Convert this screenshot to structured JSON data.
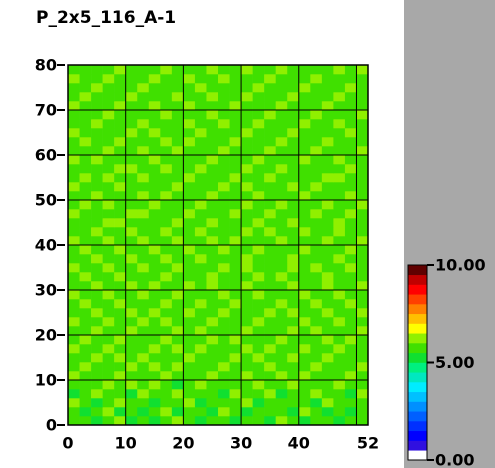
{
  "chart_data": {
    "type": "heatmap",
    "title": "P_2x5_116_A-1",
    "xlim": [
      0,
      52
    ],
    "ylim": [
      0,
      80
    ],
    "xticks": [
      0,
      10,
      20,
      30,
      40,
      52
    ],
    "yticks": [
      0,
      10,
      20,
      30,
      40,
      50,
      60,
      70,
      80
    ],
    "xgrid": [
      10,
      20,
      30,
      40,
      50
    ],
    "ygrid": [
      10,
      20,
      30,
      40,
      50,
      60,
      70
    ],
    "clim": [
      0,
      10
    ],
    "colorbar_ticks": [
      {
        "value": 0,
        "label": "0.00"
      },
      {
        "value": 5,
        "label": "5.00"
      },
      {
        "value": 10,
        "label": "10.00"
      }
    ],
    "colormap": [
      "#ffffff",
      "#3010e0",
      "#0000ff",
      "#0030ff",
      "#0060ff",
      "#0090ff",
      "#00c0ff",
      "#00ecff",
      "#00e8c0",
      "#00f080",
      "#10e030",
      "#40e000",
      "#90f000",
      "#ffff00",
      "#ffc000",
      "#ff8000",
      "#ff4000",
      "#ff0000",
      "#c00000",
      "#600000"
    ],
    "values": [
      [
        5.6,
        5.8,
        5.3,
        5.9,
        6.1,
        5.4,
        5.7,
        5.2,
        5.8,
        6.0,
        5.5,
        5.3,
        5.9,
        5.6,
        5.1,
        5.8,
        5.7,
        5.4,
        6.1,
        5.8,
        5.3,
        5.6,
        5.9,
        5.2,
        5.7,
        5.5
      ],
      [
        5.8,
        5.2,
        5.7,
        6.2,
        5.4,
        5.9,
        5.1,
        5.6,
        6.0,
        5.3,
        5.8,
        5.7,
        5.4,
        6.1,
        5.6,
        5.3,
        5.9,
        5.5,
        5.7,
        5.2,
        6.0,
        5.8,
        5.4,
        5.6,
        5.3,
        5.9
      ],
      [
        6.1,
        5.7,
        5.4,
        5.8,
        6.3,
        5.6,
        5.9,
        5.3,
        5.7,
        5.8,
        6.1,
        5.4,
        5.6,
        5.9,
        5.8,
        6.2,
        5.4,
        5.7,
        5.9,
        5.6,
        5.8,
        5.3,
        6.1,
        5.7,
        5.9,
        5.6
      ],
      [
        5.4,
        5.9,
        6.0,
        5.6,
        5.8,
        5.3,
        6.2,
        5.7,
        5.5,
        6.1,
        5.6,
        5.9,
        5.8,
        5.3,
        6.0,
        5.7,
        5.6,
        6.2,
        5.4,
        5.9,
        5.7,
        6.0,
        5.6,
        5.8,
        5.4,
        6.1
      ],
      [
        5.9,
        5.6,
        5.8,
        6.3,
        5.7,
        6.0,
        5.6,
        6.1,
        5.9,
        5.4,
        5.8,
        6.2,
        5.7,
        5.9,
        5.6,
        5.8,
        6.1,
        5.7,
        5.9,
        6.3,
        5.6,
        5.8,
        5.7,
        6.0,
        5.9,
        5.7
      ],
      [
        6.2,
        5.8,
        5.6,
        5.9,
        6.1,
        5.7,
        5.9,
        5.8,
        6.3,
        5.7,
        5.9,
        5.6,
        6.1,
        5.8,
        5.9,
        6.2,
        5.7,
        5.8,
        6.0,
        5.7,
        6.1,
        5.9,
        5.8,
        5.6,
        6.2,
        5.8
      ],
      [
        5.7,
        6.1,
        5.9,
        5.6,
        5.8,
        6.2,
        5.7,
        6.0,
        5.8,
        6.1,
        5.7,
        5.9,
        5.8,
        6.2,
        5.7,
        5.9,
        5.8,
        6.1,
        5.6,
        5.9,
        5.8,
        6.2,
        5.9,
        5.7,
        5.8,
        6.0
      ],
      [
        5.9,
        5.7,
        6.2,
        5.8,
        6.0,
        5.9,
        6.1,
        5.7,
        5.9,
        5.8,
        6.3,
        5.8,
        5.9,
        5.7,
        6.1,
        5.8,
        6.0,
        5.7,
        5.9,
        6.1,
        5.7,
        5.8,
        6.1,
        5.9,
        5.7,
        5.9
      ],
      [
        6.0,
        5.9,
        5.7,
        6.1,
        5.8,
        5.7,
        5.9,
        6.2,
        5.7,
        6.0,
        5.8,
        6.1,
        5.7,
        5.9,
        5.8,
        6.0,
        5.9,
        6.2,
        5.8,
        5.7,
        6.0,
        5.9,
        5.7,
        6.2,
        5.9,
        5.8
      ],
      [
        5.8,
        6.2,
        5.9,
        5.7,
        6.1,
        5.9,
        5.8,
        5.7,
        6.1,
        5.9,
        5.7,
        5.8,
        6.2,
        5.9,
        6.0,
        5.7,
        5.8,
        5.9,
        6.1,
        5.8,
        5.9,
        5.7,
        6.0,
        5.8,
        6.1,
        5.7
      ],
      [
        5.9,
        5.7,
        6.1,
        5.9,
        5.7,
        6.2,
        5.9,
        5.8,
        5.7,
        6.1,
        5.9,
        6.0,
        5.8,
        5.7,
        5.9,
        6.1,
        5.8,
        5.7,
        5.9,
        6.2,
        5.8,
        6.0,
        5.9,
        5.7,
        5.8,
        6.2
      ],
      [
        6.1,
        5.9,
        5.8,
        6.0,
        5.9,
        5.7,
        6.1,
        5.9,
        6.0,
        5.8,
        5.7,
        5.9,
        6.1,
        5.8,
        5.7,
        5.9,
        6.2,
        5.8,
        5.7,
        5.9,
        6.1,
        5.7,
        5.8,
        6.0,
        5.9,
        5.8
      ],
      [
        5.7,
        5.8,
        6.2,
        5.9,
        5.8,
        6.0,
        5.7,
        6.1,
        5.9,
        5.7,
        6.0,
        5.8,
        5.9,
        6.1,
        5.8,
        5.7,
        5.9,
        6.0,
        5.8,
        6.1,
        5.9,
        5.8,
        6.2,
        5.7,
        5.9,
        6.0
      ],
      [
        5.9,
        6.1,
        5.7,
        5.8,
        6.1,
        5.9,
        5.8,
        5.7,
        6.2,
        5.9,
        5.8,
        6.1,
        5.7,
        5.9,
        6.0,
        5.8,
        5.7,
        5.9,
        6.2,
        5.8,
        5.7,
        6.0,
        5.9,
        5.8,
        6.1,
        5.7
      ],
      [
        6.0,
        5.8,
        5.9,
        6.2,
        5.7,
        5.8,
        6.1,
        5.9,
        5.8,
        6.0,
        5.7,
        5.9,
        5.8,
        6.1,
        5.9,
        5.7,
        6.1,
        5.8,
        5.9,
        5.7,
        6.0,
        5.8,
        5.7,
        6.1,
        5.8,
        5.9
      ],
      [
        5.8,
        5.9,
        6.1,
        5.7,
        5.9,
        6.1,
        5.8,
        6.0,
        5.7,
        5.9,
        6.1,
        5.8,
        6.0,
        5.7,
        5.8,
        6.2,
        5.9,
        5.7,
        5.8,
        6.1,
        5.9,
        5.7,
        6.0,
        5.9,
        5.7,
        6.1
      ],
      [
        5.9,
        6.0,
        5.7,
        5.9,
        6.2,
        5.8,
        5.7,
        5.9,
        6.1,
        5.8,
        5.9,
        5.7,
        6.1,
        5.9,
        5.8,
        5.7,
        6.0,
        5.9,
        6.1,
        5.8,
        5.7,
        5.9,
        6.2,
        5.8,
        5.9,
        5.8
      ],
      [
        6.1,
        5.7,
        5.9,
        6.0,
        5.8,
        5.9,
        6.1,
        5.7,
        5.9,
        6.2,
        5.8,
        5.9,
        5.7,
        6.0,
        5.9,
        6.1,
        5.8,
        5.7,
        5.9,
        6.0,
        5.8,
        6.1,
        5.7,
        5.9,
        6.0,
        5.8
      ],
      [
        5.7,
        5.9,
        6.1,
        5.8,
        5.7,
        6.0,
        5.9,
        5.8,
        6.0,
        5.7,
        5.9,
        6.2,
        5.8,
        5.9,
        5.7,
        6.0,
        5.9,
        5.8,
        5.7,
        6.1,
        5.9,
        5.8,
        5.9,
        6.1,
        5.7,
        5.9
      ],
      [
        5.9,
        6.1,
        5.8,
        5.9,
        6.1,
        5.7,
        5.8,
        6.1,
        5.7,
        5.9,
        6.0,
        5.8,
        5.9,
        6.1,
        5.8,
        5.7,
        6.2,
        5.9,
        5.8,
        5.7,
        6.0,
        5.9,
        5.8,
        5.7,
        6.1,
        5.8
      ],
      [
        6.0,
        5.8,
        5.7,
        6.1,
        5.9,
        5.8,
        6.0,
        5.9,
        5.8,
        6.1,
        5.7,
        5.9,
        6.0,
        5.8,
        6.1,
        5.9,
        5.7,
        5.8,
        6.1,
        5.9,
        5.8,
        5.7,
        6.1,
        5.9,
        5.8,
        6.0
      ],
      [
        5.8,
        5.9,
        6.2,
        5.7,
        5.8,
        6.1,
        5.7,
        5.9,
        6.1,
        5.8,
        5.9,
        6.0,
        5.7,
        5.9,
        5.8,
        6.1,
        5.9,
        6.0,
        5.7,
        5.8,
        6.1,
        5.9,
        5.7,
        6.0,
        5.9,
        5.7
      ],
      [
        5.9,
        5.7,
        5.9,
        6.0,
        6.1,
        5.8,
        5.9,
        5.7,
        5.9,
        6.0,
        5.8,
        5.7,
        6.1,
        5.9,
        5.7,
        5.8,
        6.0,
        5.9,
        5.8,
        6.1,
        5.7,
        5.9,
        5.8,
        6.1,
        5.7,
        5.9
      ],
      [
        6.1,
        5.9,
        5.8,
        5.7,
        5.9,
        6.0,
        6.1,
        5.8,
        5.7,
        5.9,
        6.1,
        5.9,
        5.8,
        5.7,
        6.0,
        5.9,
        5.8,
        6.1,
        5.9,
        5.7,
        5.8,
        6.0,
        5.9,
        5.8,
        6.0,
        5.8
      ],
      [
        5.7,
        6.0,
        5.9,
        6.1,
        5.7,
        5.9,
        5.8,
        6.0,
        5.9,
        5.8,
        5.7,
        6.1,
        5.9,
        5.8,
        5.9,
        6.1,
        5.7,
        5.9,
        6.0,
        5.8,
        5.9,
        5.7,
        6.1,
        5.9,
        5.8,
        6.1
      ],
      [
        5.9,
        5.8,
        6.1,
        5.9,
        5.8,
        5.7,
        6.0,
        5.9,
        6.1,
        5.7,
        5.9,
        5.8,
        6.0,
        5.9,
        5.7,
        5.8,
        6.1,
        5.8,
        5.7,
        5.9,
        6.1,
        5.8,
        5.9,
        5.7,
        6.0,
        5.9
      ],
      [
        6.0,
        5.9,
        5.7,
        5.8,
        6.1,
        5.9,
        5.7,
        5.8,
        5.9,
        6.1,
        5.8,
        5.9,
        5.7,
        6.1,
        5.9,
        6.0,
        5.8,
        5.7,
        5.9,
        6.0,
        5.8,
        6.1,
        5.7,
        5.9,
        5.8,
        5.7
      ],
      [
        5.8,
        6.1,
        5.9,
        6.0,
        5.7,
        5.8,
        6.1,
        5.9,
        5.7,
        5.8,
        6.0,
        5.7,
        5.9,
        5.8,
        6.1,
        5.7,
        5.9,
        6.0,
        5.8,
        5.7,
        5.9,
        5.8,
        6.0,
        6.1,
        5.7,
        5.9
      ],
      [
        5.9,
        5.7,
        5.8,
        5.9,
        6.0,
        6.1,
        5.8,
        5.7,
        6.1,
        5.9,
        5.7,
        6.0,
        5.8,
        5.9,
        5.7,
        6.0,
        5.8,
        5.9,
        6.1,
        5.8,
        5.7,
        5.9,
        5.8,
        5.7,
        6.1,
        5.8
      ],
      [
        6.1,
        5.8,
        6.0,
        5.7,
        5.9,
        5.8,
        5.9,
        6.1,
        5.8,
        5.7,
        5.9,
        5.8,
        6.1,
        5.7,
        5.9,
        5.8,
        6.1,
        5.7,
        5.9,
        5.8,
        6.0,
        5.7,
        5.9,
        6.0,
        5.8,
        5.9
      ],
      [
        5.7,
        5.9,
        5.8,
        6.1,
        5.8,
        5.7,
        6.0,
        5.8,
        5.9,
        6.0,
        5.8,
        5.9,
        5.7,
        6.0,
        5.8,
        5.9,
        5.7,
        6.0,
        5.8,
        5.9,
        5.7,
        6.1,
        5.8,
        5.7,
        5.9,
        6.0
      ],
      [
        5.9,
        6.0,
        5.7,
        5.9,
        6.1,
        5.9,
        5.8,
        5.7,
        6.0,
        5.8,
        6.1,
        5.7,
        5.9,
        5.8,
        6.0,
        5.7,
        5.9,
        5.8,
        6.1,
        5.7,
        5.9,
        5.8,
        6.0,
        5.9,
        5.7,
        5.8
      ],
      [
        6.0,
        5.8,
        5.9,
        5.7,
        5.8,
        6.0,
        5.9,
        6.1,
        5.7,
        5.9,
        5.8,
        6.0,
        5.8,
        5.9,
        5.7,
        6.1,
        5.8,
        5.9,
        5.7,
        6.0,
        5.8,
        5.9,
        5.7,
        5.8,
        6.1,
        5.9
      ],
      [
        5.8,
        5.9,
        6.1,
        5.8,
        5.9,
        5.7,
        6.1,
        5.8,
        5.9,
        5.7,
        6.0,
        5.9,
        5.7,
        6.1,
        5.9,
        5.8,
        6.0,
        5.7,
        5.9,
        5.8,
        6.1,
        5.7,
        5.9,
        6.0,
        5.8,
        5.7
      ],
      [
        5.9,
        5.7,
        5.8,
        6.0,
        5.7,
        5.9,
        5.8,
        5.9,
        6.1,
        5.8,
        5.7,
        5.9,
        6.0,
        5.8,
        5.7,
        5.9,
        5.8,
        6.1,
        5.7,
        5.9,
        5.8,
        6.0,
        5.8,
        5.9,
        5.7,
        6.0
      ],
      [
        6.1,
        5.9,
        5.7,
        5.9,
        6.0,
        5.8,
        5.7,
        6.0,
        5.8,
        5.9,
        6.1,
        5.8,
        5.7,
        5.9,
        6.1,
        5.7,
        5.9,
        5.8,
        6.0,
        5.7,
        5.9,
        5.8,
        6.1,
        5.7,
        5.9,
        5.8
      ],
      [
        5.7,
        6.0,
        5.9,
        5.8,
        5.9,
        6.1,
        5.9,
        5.7,
        5.9,
        6.0,
        5.8,
        5.7,
        6.1,
        5.8,
        5.9,
        6.0,
        5.7,
        5.9,
        5.8,
        6.1,
        5.7,
        5.9,
        5.8,
        6.0,
        5.8,
        5.9
      ],
      [
        5.9,
        5.8,
        6.0,
        5.7,
        5.8,
        5.9,
        6.0,
        5.8,
        5.7,
        5.9,
        5.9,
        6.1,
        5.8,
        5.7,
        5.9,
        5.8,
        6.1,
        5.7,
        5.9,
        5.8,
        6.0,
        5.8,
        5.7,
        5.9,
        6.1,
        5.7
      ],
      [
        6.0,
        5.7,
        5.9,
        6.1,
        5.9,
        5.7,
        5.8,
        6.0,
        5.9,
        5.7,
        6.0,
        5.8,
        5.9,
        6.0,
        5.8,
        5.7,
        5.9,
        6.0,
        5.8,
        5.7,
        5.9,
        6.1,
        5.9,
        5.8,
        5.7,
        5.9
      ],
      [
        5.8,
        5.9,
        5.7,
        5.9,
        6.1,
        5.8,
        5.9,
        5.7,
        6.0,
        5.8,
        5.9,
        5.7,
        6.0,
        5.8,
        5.9,
        6.1,
        5.8,
        5.7,
        6.0,
        5.9,
        5.8,
        5.7,
        5.9,
        6.0,
        5.8,
        6.1
      ]
    ]
  }
}
